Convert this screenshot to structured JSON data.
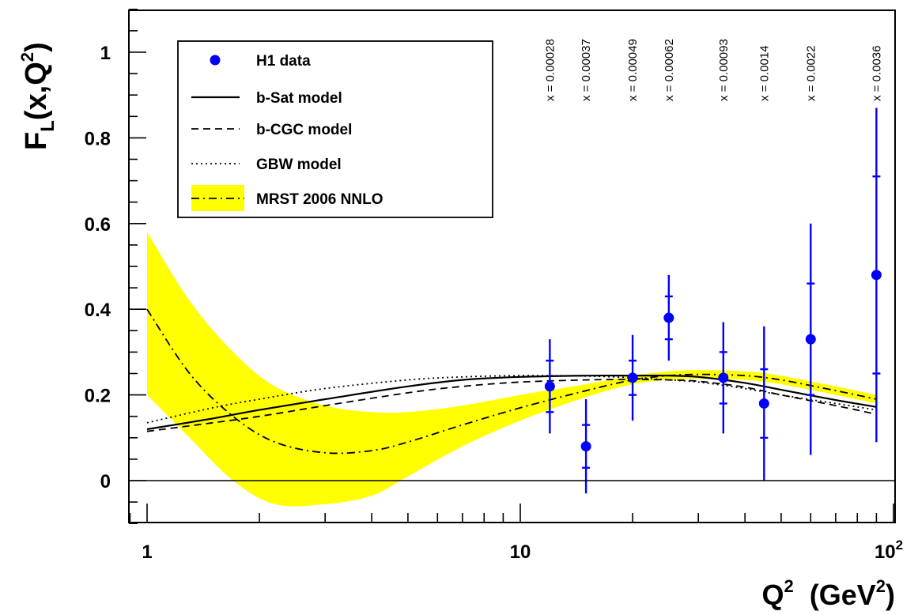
{
  "chart_data": {
    "type": "scatter",
    "xscale": "log",
    "xlim": [
      0.9,
      100
    ],
    "ylim": [
      -0.1,
      1.1
    ],
    "x_ticks": [
      {
        "value": 1,
        "label": "1"
      },
      {
        "value": 10,
        "label": "10"
      },
      {
        "value": 100,
        "label": "10",
        "sup": "2"
      }
    ],
    "y_ticks": [
      {
        "value": 0,
        "label": "0"
      },
      {
        "value": 0.2,
        "label": "0.2"
      },
      {
        "value": 0.4,
        "label": "0.4"
      },
      {
        "value": 0.6,
        "label": "0.6"
      },
      {
        "value": 0.8,
        "label": "0.8"
      },
      {
        "value": 1.0,
        "label": "1"
      }
    ],
    "xlabel": {
      "main": "Q",
      "sup": "2",
      "unit_open": "  (GeV",
      "unit_sup": "2",
      "unit_close": ")"
    },
    "ylabel": {
      "main": "F",
      "sub": "L",
      "args_open": "(x,Q",
      "args_sup": "2",
      "args_close": ")"
    },
    "legend": {
      "position": "top-left",
      "entries": [
        {
          "name": "H1 data",
          "style": "marker"
        },
        {
          "name": "b-Sat model",
          "style": "solid"
        },
        {
          "name": "b-CGC model",
          "style": "dashed"
        },
        {
          "name": "GBW model",
          "style": "dotted"
        },
        {
          "name": "MRST 2006 NNLO",
          "style": "dashdot-band"
        }
      ]
    },
    "bin_labels": [
      {
        "q2": 12,
        "label": "x = 0.00028"
      },
      {
        "q2": 15,
        "label": "x = 0.00037"
      },
      {
        "q2": 20,
        "label": "x = 0.00049"
      },
      {
        "q2": 25,
        "label": "x = 0.00062"
      },
      {
        "q2": 35,
        "label": "x = 0.00093"
      },
      {
        "q2": 45,
        "label": "x = 0.0014"
      },
      {
        "q2": 60,
        "label": "x = 0.0022"
      },
      {
        "q2": 90,
        "label": "x = 0.0036"
      }
    ],
    "h1_data": [
      {
        "q2": 12,
        "fl": 0.22,
        "stat": 0.06,
        "tot": 0.11
      },
      {
        "q2": 15,
        "fl": 0.08,
        "stat": 0.05,
        "tot": 0.11
      },
      {
        "q2": 20,
        "fl": 0.24,
        "stat": 0.04,
        "tot": 0.1
      },
      {
        "q2": 25,
        "fl": 0.38,
        "stat": 0.05,
        "tot": 0.1
      },
      {
        "q2": 35,
        "fl": 0.24,
        "stat": 0.06,
        "tot": 0.13
      },
      {
        "q2": 45,
        "fl": 0.18,
        "stat": 0.08,
        "tot": 0.18
      },
      {
        "q2": 60,
        "fl": 0.33,
        "stat": 0.13,
        "tot": 0.27
      },
      {
        "q2": 90,
        "fl": 0.48,
        "stat": 0.23,
        "tot": 0.39
      }
    ],
    "series": [
      {
        "name": "b-Sat model",
        "style": "solid",
        "x": [
          1,
          1.5,
          2,
          3,
          5,
          7,
          10,
          15,
          20,
          25,
          30,
          40,
          50,
          70,
          90
        ],
        "y": [
          0.12,
          0.145,
          0.165,
          0.19,
          0.22,
          0.235,
          0.242,
          0.245,
          0.245,
          0.245,
          0.242,
          0.228,
          0.212,
          0.188,
          0.172
        ]
      },
      {
        "name": "b-CGC model",
        "style": "dashed",
        "x": [
          1,
          1.5,
          2,
          3,
          5,
          7,
          10,
          15,
          20,
          25,
          30,
          40,
          50,
          70,
          90
        ],
        "y": [
          0.115,
          0.135,
          0.15,
          0.175,
          0.205,
          0.22,
          0.23,
          0.235,
          0.236,
          0.235,
          0.232,
          0.218,
          0.2,
          0.175,
          0.155
        ]
      },
      {
        "name": "GBW model",
        "style": "dotted",
        "x": [
          1,
          1.5,
          2,
          3,
          5,
          7,
          10,
          15,
          20,
          25,
          30,
          40,
          50,
          70,
          90
        ],
        "y": [
          0.135,
          0.17,
          0.19,
          0.215,
          0.235,
          0.242,
          0.245,
          0.244,
          0.24,
          0.235,
          0.23,
          0.215,
          0.2,
          0.18,
          0.165
        ]
      },
      {
        "name": "MRST 2006 NNLO",
        "style": "dashdot",
        "x": [
          1,
          1.3,
          1.7,
          2.2,
          3,
          4,
          5,
          7,
          10,
          15,
          20,
          25,
          30,
          40,
          50,
          70,
          90
        ],
        "y": [
          0.4,
          0.25,
          0.15,
          0.09,
          0.065,
          0.07,
          0.09,
          0.13,
          0.17,
          0.21,
          0.235,
          0.245,
          0.248,
          0.245,
          0.235,
          0.21,
          0.19
        ]
      }
    ],
    "band": {
      "name": "MRST 2006 NNLO",
      "color": "#ffff00",
      "x": [
        1,
        1.3,
        1.7,
        2.2,
        3,
        4,
        5,
        7,
        10,
        15,
        20,
        25,
        30,
        40,
        50,
        70,
        90
      ],
      "upper": [
        0.58,
        0.42,
        0.3,
        0.22,
        0.175,
        0.16,
        0.16,
        0.175,
        0.2,
        0.225,
        0.245,
        0.255,
        0.258,
        0.255,
        0.245,
        0.22,
        0.2
      ],
      "lower": [
        0.2,
        0.1,
        0.0,
        -0.055,
        -0.055,
        -0.035,
        0.01,
        0.08,
        0.14,
        0.195,
        0.225,
        0.235,
        0.238,
        0.235,
        0.225,
        0.2,
        0.18
      ]
    },
    "colors": {
      "data": "#0000ff",
      "band": "#ffff00",
      "axis": "#000000"
    }
  }
}
